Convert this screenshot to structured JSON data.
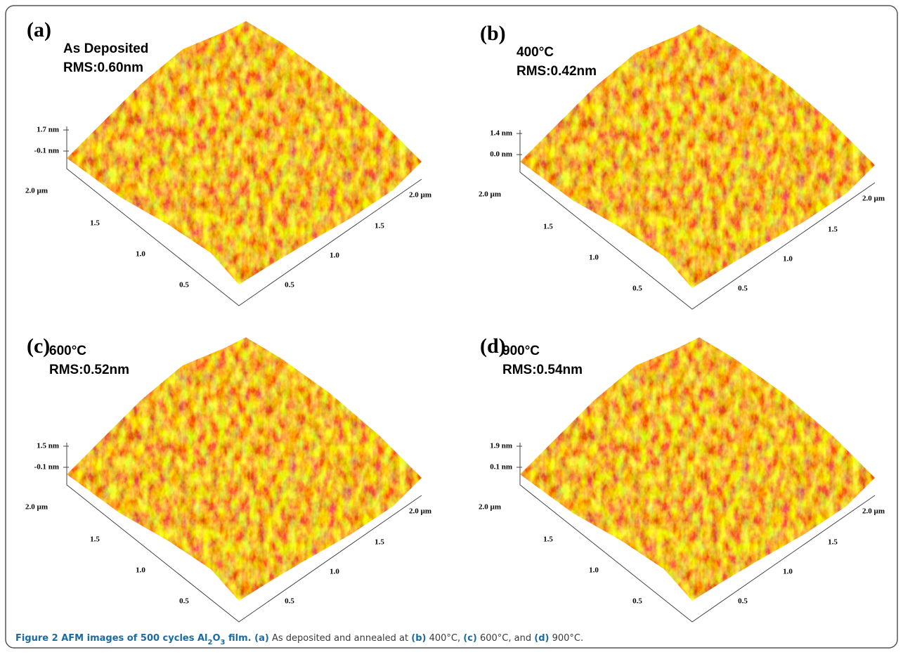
{
  "panels": [
    {
      "label": "(a)",
      "condition": "As Deposited",
      "rms": "RMS:0.60nm",
      "z_ticks": [
        "1.7 nm",
        "-0.1 nm"
      ],
      "left_axis": [
        "2.0 µm",
        "1.5",
        "1.0",
        "0.5"
      ],
      "right_axis": [
        "2.0 µm",
        "1.5",
        "1.0",
        "0.5"
      ]
    },
    {
      "label": "(b)",
      "condition": "400°C",
      "rms": "RMS:0.42nm",
      "z_ticks": [
        "1.4 nm",
        "0.0 nm"
      ],
      "left_axis": [
        "2.0 µm",
        "1.5",
        "1.0",
        "0.5"
      ],
      "right_axis": [
        "2.0 µm",
        "1.5",
        "1.0",
        "0.5"
      ]
    },
    {
      "label": "(c)",
      "condition": "600°C",
      "rms": "RMS:0.52nm",
      "z_ticks": [
        "1.5 nm",
        "-0.1 nm"
      ],
      "left_axis": [
        "2.0 µm",
        "1.5",
        "1.0",
        "0.5"
      ],
      "right_axis": [
        "2.0 µm",
        "1.5",
        "1.0",
        "0.5"
      ]
    },
    {
      "label": "(d)",
      "condition": "900°C",
      "rms": "RMS:0.54nm",
      "z_ticks": [
        "1.9 nm",
        "0.1 nm"
      ],
      "left_axis": [
        "2.0 µm",
        "1.5",
        "1.0",
        "0.5"
      ],
      "right_axis": [
        "2.0 µm",
        "1.5",
        "1.0",
        "0.5"
      ]
    }
  ],
  "caption": [
    {
      "text": "Figure 2 AFM images of 500 cycles Al",
      "bold": true
    },
    {
      "text": "2",
      "bold": true,
      "sub": true
    },
    {
      "text": "O",
      "bold": true
    },
    {
      "text": "3",
      "bold": true,
      "sub": true
    },
    {
      "text": " film.",
      "bold": true
    },
    {
      "text": " (a)",
      "bold": true
    },
    {
      "text": " As deposited and annealed at "
    },
    {
      "text": "(b)",
      "bold": true
    },
    {
      "text": " 400°C, "
    },
    {
      "text": "(c)",
      "bold": true
    },
    {
      "text": " 600°C, and "
    },
    {
      "text": "(d)",
      "bold": true
    },
    {
      "text": " 900°C."
    }
  ]
}
